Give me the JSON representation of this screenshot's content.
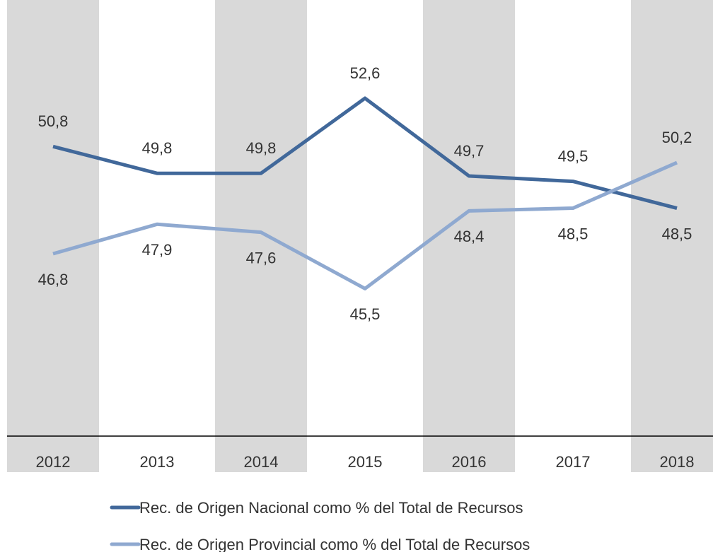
{
  "chart_data": {
    "type": "line",
    "categories": [
      "2012",
      "2013",
      "2014",
      "2015",
      "2016",
      "2017",
      "2018"
    ],
    "series": [
      {
        "name": "Rec. de Origen Nacional como % del Total de Recursos",
        "color": "#41689a",
        "values": [
          50.8,
          49.8,
          49.8,
          52.6,
          49.7,
          49.5,
          48.5
        ],
        "value_labels": [
          "50,8",
          "49,8",
          "49,8",
          "52,6",
          "49,7",
          "49,5",
          "48,5"
        ]
      },
      {
        "name": "Rec. de Origen Provincial como % del Total de Recursos",
        "color": "#8fa9d0",
        "values": [
          46.8,
          47.9,
          47.6,
          45.5,
          48.4,
          48.5,
          50.2
        ],
        "value_labels": [
          "46,8",
          "47,9",
          "47,6",
          "45,5",
          "48,4",
          "48,5",
          "50,2"
        ]
      }
    ],
    "ylim": [
      40,
      56
    ],
    "legend": "bottom"
  }
}
